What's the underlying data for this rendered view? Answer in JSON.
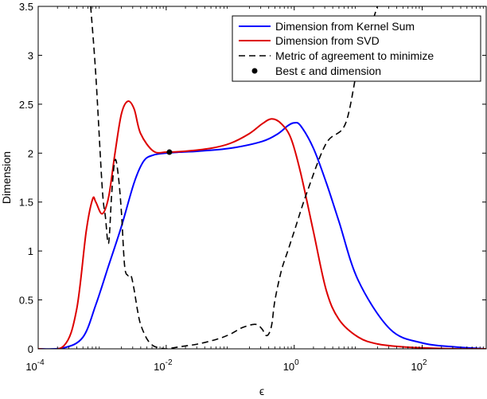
{
  "chart_data": {
    "type": "line",
    "xscale": "log",
    "xlim_exponent": [
      -4,
      3
    ],
    "ylim": [
      0,
      3.5
    ],
    "xlabel": "ϵ",
    "ylabel": "Dimension",
    "x_ticks": [
      {
        "base": "10",
        "exp": "-4"
      },
      {
        "base": "10",
        "exp": "-2"
      },
      {
        "base": "10",
        "exp": "0"
      },
      {
        "base": "10",
        "exp": "2"
      }
    ],
    "x_tick_values": [
      -4,
      -2,
      0,
      2
    ],
    "y_ticks": [
      "0",
      "0.5",
      "1",
      "1.5",
      "2",
      "2.5",
      "3",
      "3.5"
    ],
    "y_tick_values": [
      0,
      0.5,
      1,
      1.5,
      2,
      2.5,
      3,
      3.5
    ],
    "legend_position": "top-right",
    "series": [
      {
        "name": "Dimension from Kernel Sum",
        "color": "#0000ff",
        "style": "solid",
        "log10_x": [
          -4,
          -3.6,
          -3.3,
          -3.1,
          -2.9,
          -2.7,
          -2.5,
          -2.35,
          -2.2,
          -2.0,
          -1.8,
          -1.5,
          -1.0,
          -0.5,
          -0.25,
          -0.1,
          0.0,
          0.1,
          0.3,
          0.5,
          0.7,
          1.0,
          1.5,
          2.0,
          2.5,
          3.0
        ],
        "y": [
          0,
          0.01,
          0.12,
          0.45,
          0.85,
          1.25,
          1.7,
          1.92,
          1.98,
          2.0,
          2.01,
          2.02,
          2.05,
          2.12,
          2.2,
          2.28,
          2.31,
          2.28,
          2.05,
          1.7,
          1.3,
          0.7,
          0.2,
          0.06,
          0.02,
          0.0
        ]
      },
      {
        "name": "Dimension from SVD",
        "color": "#dd0000",
        "style": "solid",
        "log10_x": [
          -4,
          -3.6,
          -3.4,
          -3.25,
          -3.15,
          -3.1,
          -3.0,
          -2.9,
          -2.8,
          -2.7,
          -2.6,
          -2.5,
          -2.4,
          -2.2,
          -2.0,
          -1.7,
          -1.3,
          -1.0,
          -0.7,
          -0.5,
          -0.35,
          -0.2,
          -0.05,
          0.1,
          0.3,
          0.5,
          0.7,
          1.0,
          1.3,
          1.7,
          2.0,
          2.5,
          3.0
        ],
        "y": [
          0,
          0.03,
          0.4,
          1.2,
          1.53,
          1.5,
          1.38,
          1.55,
          2.0,
          2.4,
          2.53,
          2.45,
          2.2,
          2.02,
          2.01,
          2.02,
          2.05,
          2.1,
          2.2,
          2.3,
          2.35,
          2.3,
          2.15,
          1.8,
          1.2,
          0.6,
          0.3,
          0.12,
          0.05,
          0.02,
          0.01,
          0.0,
          0.0
        ]
      },
      {
        "name": "Metric of agreement to minimize",
        "color": "#000000",
        "style": "dashed",
        "log10_x": [
          -3.18,
          -3.1,
          -3.0,
          -2.95,
          -2.9,
          -2.85,
          -2.8,
          -2.75,
          -2.7,
          -2.65,
          -2.6,
          -2.55,
          -2.5,
          -2.45,
          -2.4,
          -2.3,
          -2.2,
          -2.1,
          -2.0,
          -1.8,
          -1.5,
          -1.2,
          -1.0,
          -0.8,
          -0.6,
          -0.5,
          -0.45,
          -0.4,
          -0.35,
          -0.3,
          -0.2,
          -0.1,
          0.0,
          0.2,
          0.5,
          0.8,
          1.0,
          1.2,
          1.3
        ],
        "y": [
          3.5,
          2.8,
          1.65,
          1.35,
          1.08,
          1.6,
          1.93,
          1.78,
          1.4,
          0.85,
          0.75,
          0.75,
          0.6,
          0.4,
          0.25,
          0.1,
          0.03,
          0.01,
          0.0,
          0.02,
          0.05,
          0.1,
          0.15,
          0.22,
          0.25,
          0.2,
          0.14,
          0.15,
          0.25,
          0.5,
          0.8,
          1.0,
          1.2,
          1.6,
          2.1,
          2.3,
          2.9,
          3.3,
          3.5
        ]
      }
    ],
    "best_point": {
      "name": "Best ϵ and dimension",
      "log10_x": -1.95,
      "y": 2.01,
      "color": "#000000"
    },
    "legend_entries": [
      "Dimension from Kernel Sum",
      "Dimension from SVD",
      "Metric of agreement to minimize",
      "Best ϵ and dimension"
    ]
  }
}
